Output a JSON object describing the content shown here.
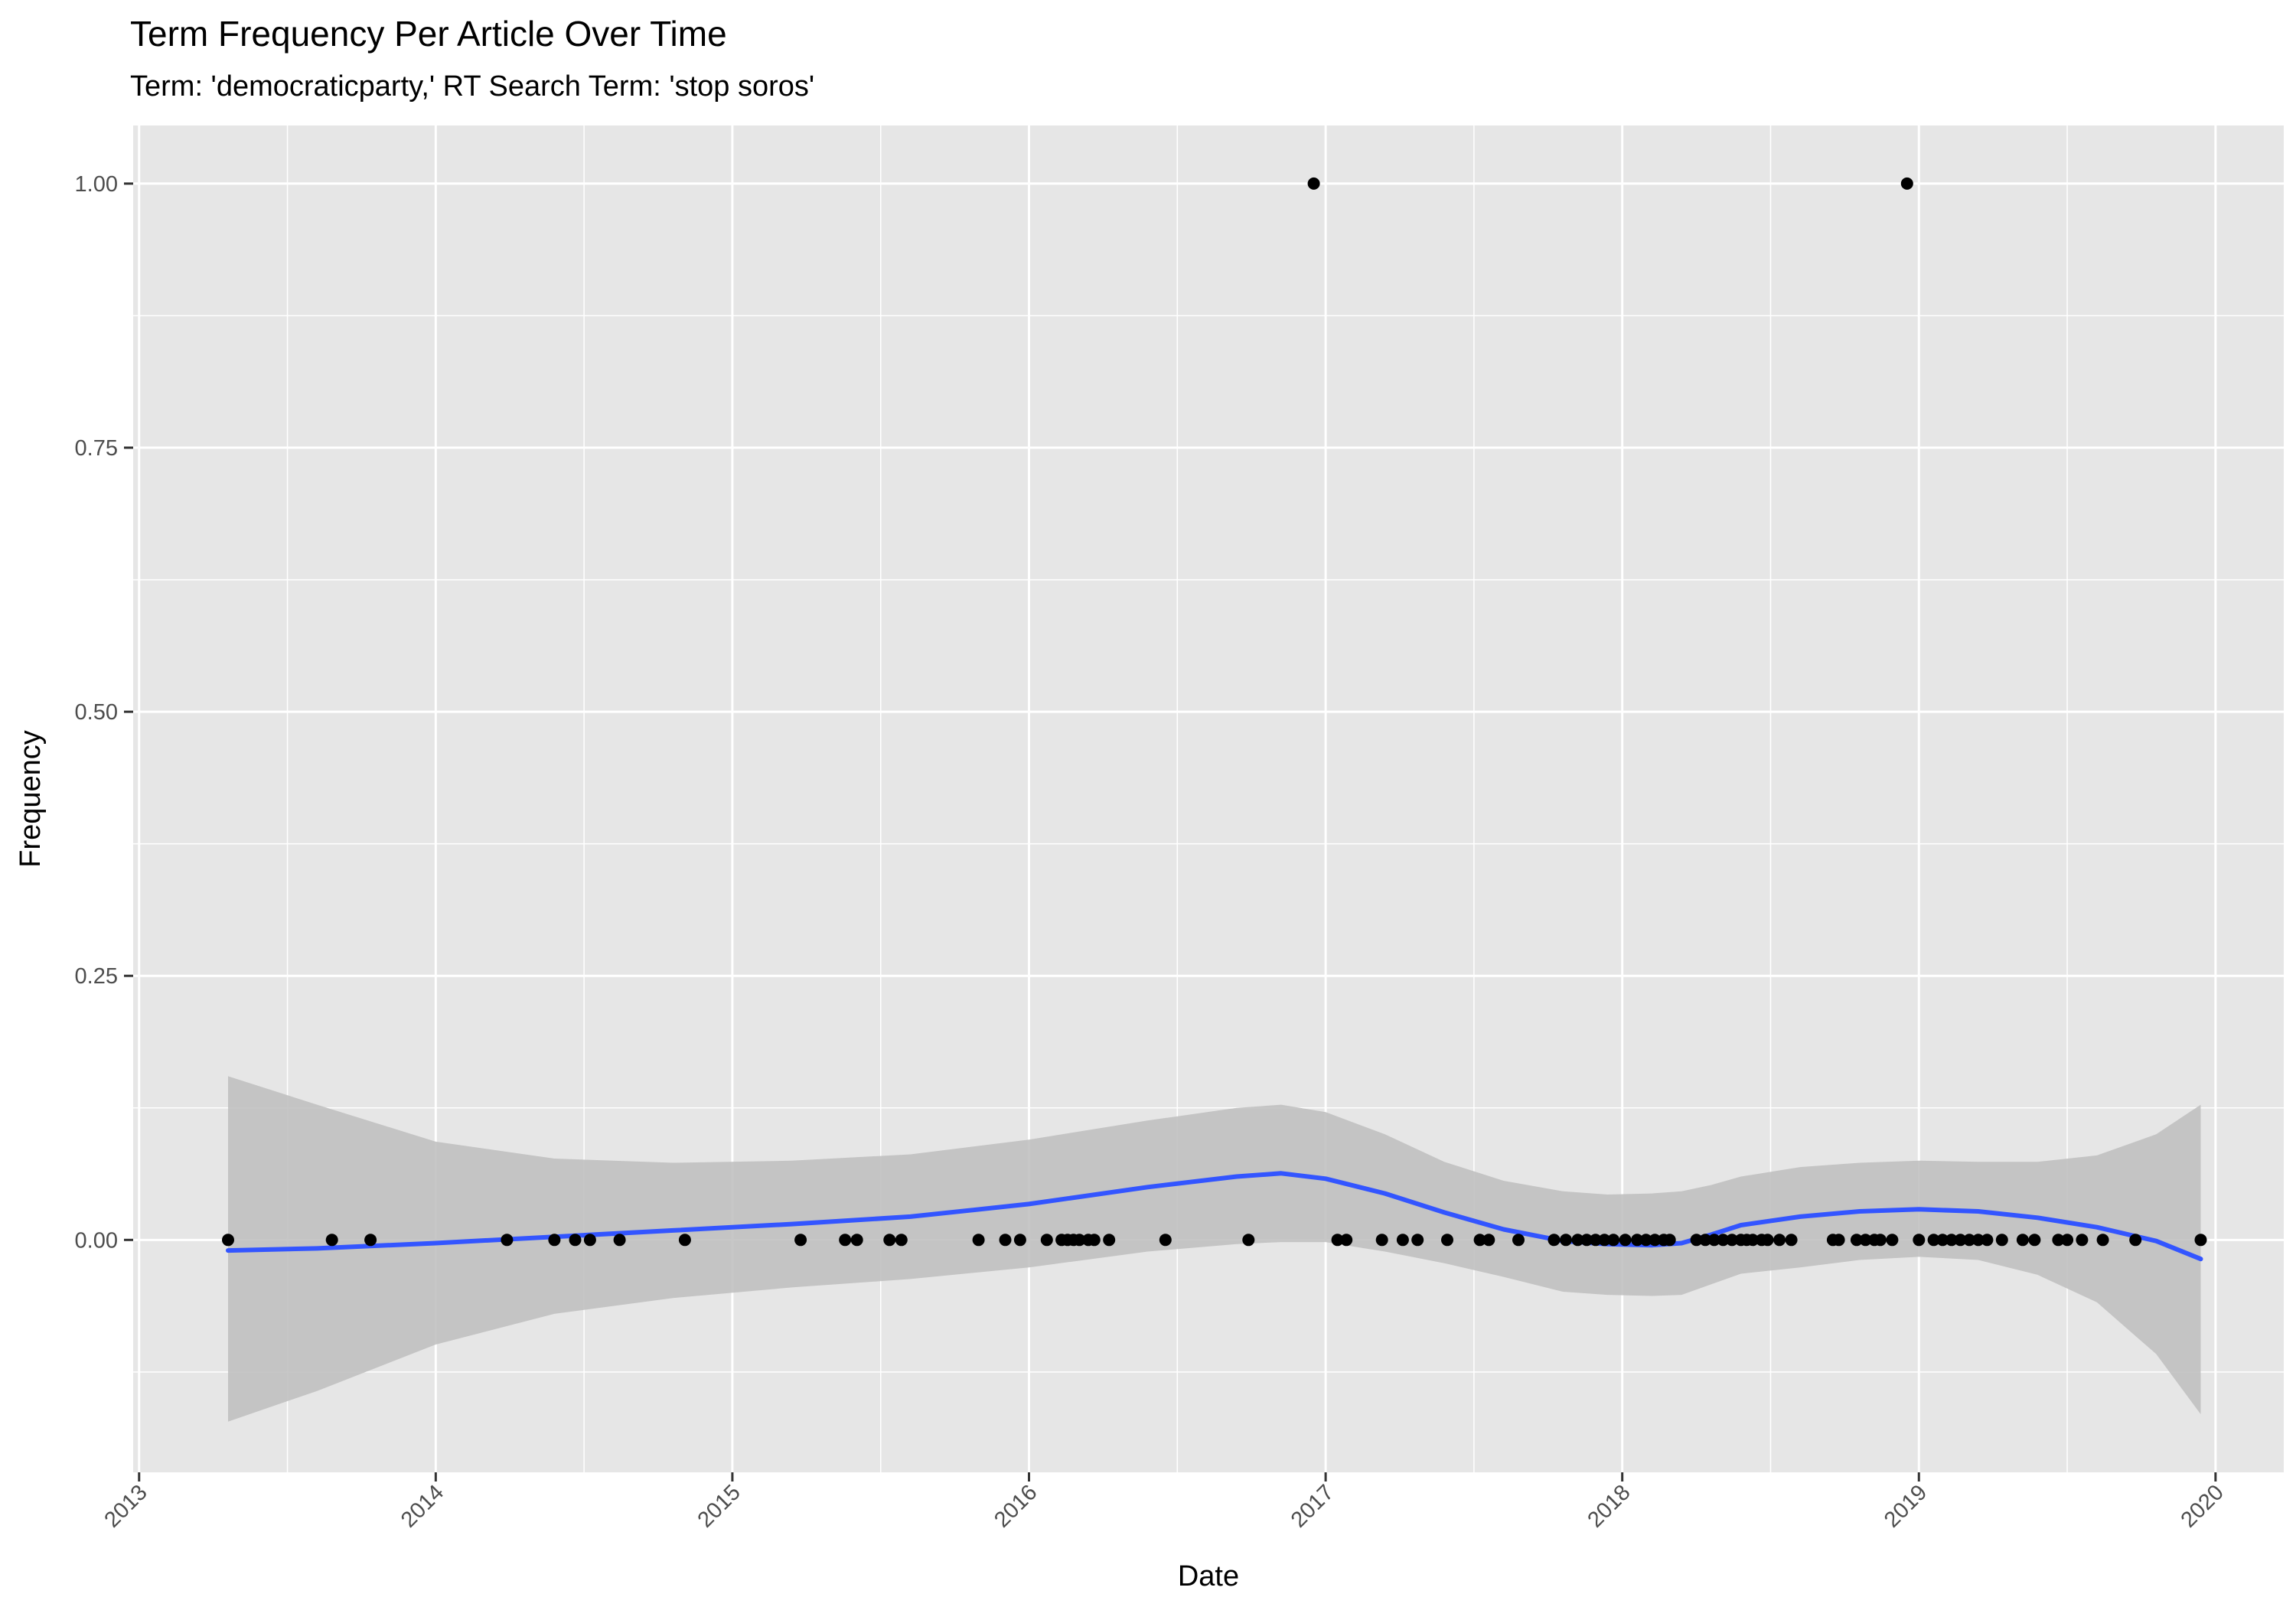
{
  "chart_data": {
    "type": "scatter",
    "title": "Term Frequency Per Article Over Time",
    "subtitle": "Term: 'democraticparty,' RT Search Term: 'stop soros'",
    "xlabel": "Date",
    "ylabel": "Frequency",
    "x_type": "date-year",
    "xlim": [
      2012.98,
      2020.23
    ],
    "ylim": [
      -0.22,
      1.055
    ],
    "x_ticks": [
      "2013",
      "2014",
      "2015",
      "2016",
      "2017",
      "2018",
      "2019",
      "2020"
    ],
    "y_ticks": [
      "0.00",
      "0.25",
      "0.50",
      "0.75",
      "1.00"
    ],
    "y_tick_values": [
      0,
      0.25,
      0.5,
      0.75,
      1.0
    ],
    "grid": true,
    "legend": "none",
    "colors": {
      "panel": "#e6e6e6",
      "grid": "#ffffff",
      "points": "#000000",
      "smooth_line": "#3355ff",
      "ribbon": "#bdbdbd"
    },
    "series": [
      {
        "type": "points",
        "x": [
          2013.3,
          2013.65,
          2013.78,
          2014.24,
          2014.4,
          2014.47,
          2014.52,
          2014.62,
          2014.84,
          2015.23,
          2015.38,
          2015.42,
          2015.53,
          2015.57,
          2015.83,
          2015.92,
          2015.97,
          2016.06,
          2016.11,
          2016.13,
          2016.15,
          2016.17,
          2016.2,
          2016.22,
          2016.27,
          2016.46,
          2016.74,
          2016.96,
          2017.04,
          2017.07,
          2017.19,
          2017.26,
          2017.31,
          2017.41,
          2017.52,
          2017.55,
          2017.65,
          2017.77,
          2017.81,
          2017.85,
          2017.88,
          2017.91,
          2017.94,
          2017.97,
          2018.01,
          2018.05,
          2018.08,
          2018.11,
          2018.14,
          2018.16,
          2018.25,
          2018.28,
          2018.31,
          2018.34,
          2018.37,
          2018.4,
          2018.42,
          2018.44,
          2018.47,
          2018.49,
          2018.53,
          2018.57,
          2018.71,
          2018.73,
          2018.79,
          2018.82,
          2018.85,
          2018.87,
          2018.91,
          2018.96,
          2019.0,
          2019.05,
          2019.08,
          2019.11,
          2019.14,
          2019.17,
          2019.2,
          2019.23,
          2019.28,
          2019.35,
          2019.39,
          2019.47,
          2019.5,
          2019.55,
          2019.62,
          2019.73,
          2019.95
        ],
        "y": [
          0,
          0,
          0,
          0,
          0,
          0,
          0,
          0,
          0,
          0,
          0,
          0,
          0,
          0,
          0,
          0,
          0,
          0,
          0,
          0,
          0,
          0,
          0,
          0,
          0,
          0,
          0,
          1,
          0,
          0,
          0,
          0,
          0,
          0,
          0,
          0,
          0,
          0,
          0,
          0,
          0,
          0,
          0,
          0,
          0,
          0,
          0,
          0,
          0,
          0,
          0,
          0,
          0,
          0,
          0,
          0,
          0,
          0,
          0,
          0,
          0,
          0,
          0,
          0,
          0,
          0,
          0,
          0,
          0,
          1,
          0,
          0,
          0,
          0,
          0,
          0,
          0,
          0,
          0,
          0,
          0,
          0,
          0,
          0,
          0,
          0,
          0
        ]
      },
      {
        "type": "smooth",
        "x": [
          2013.3,
          2013.6,
          2014.0,
          2014.4,
          2014.8,
          2015.2,
          2015.6,
          2016.0,
          2016.4,
          2016.7,
          2016.85,
          2017.0,
          2017.2,
          2017.4,
          2017.6,
          2017.8,
          2017.95,
          2018.1,
          2018.2,
          2018.3,
          2018.4,
          2018.6,
          2018.8,
          2019.0,
          2019.2,
          2019.4,
          2019.6,
          2019.8,
          2019.95
        ],
        "y": [
          -0.01,
          -0.008,
          -0.003,
          0.003,
          0.009,
          0.015,
          0.022,
          0.034,
          0.05,
          0.06,
          0.063,
          0.058,
          0.044,
          0.026,
          0.01,
          -0.001,
          -0.004,
          -0.005,
          -0.003,
          0.005,
          0.014,
          0.022,
          0.027,
          0.029,
          0.027,
          0.021,
          0.012,
          -0.001,
          -0.018
        ],
        "upper": [
          0.155,
          0.128,
          0.093,
          0.077,
          0.073,
          0.075,
          0.081,
          0.095,
          0.113,
          0.125,
          0.128,
          0.121,
          0.1,
          0.074,
          0.056,
          0.046,
          0.043,
          0.044,
          0.046,
          0.052,
          0.06,
          0.069,
          0.073,
          0.075,
          0.074,
          0.074,
          0.08,
          0.1,
          0.128
        ],
        "lower": [
          -0.172,
          -0.143,
          -0.099,
          -0.07,
          -0.055,
          -0.045,
          -0.037,
          -0.026,
          -0.011,
          -0.004,
          -0.002,
          -0.002,
          -0.011,
          -0.022,
          -0.035,
          -0.049,
          -0.052,
          -0.053,
          -0.052,
          -0.042,
          -0.032,
          -0.026,
          -0.019,
          -0.016,
          -0.019,
          -0.033,
          -0.059,
          -0.108,
          -0.165
        ]
      }
    ]
  }
}
